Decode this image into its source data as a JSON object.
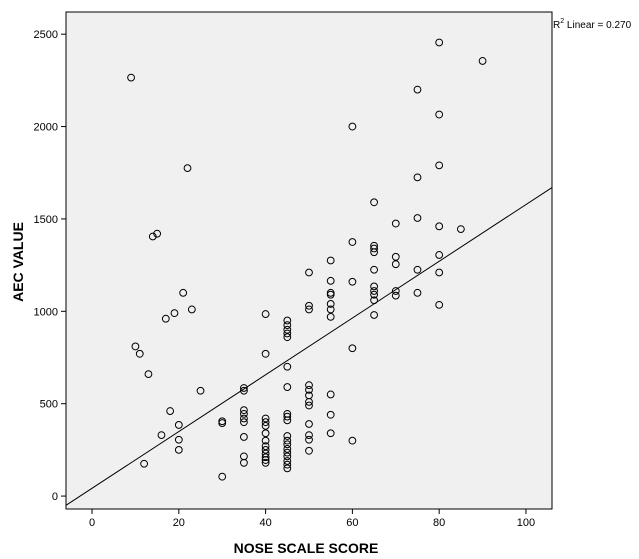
{
  "chart_data": {
    "type": "scatter",
    "xlabel": "NOSE SCALE SCORE",
    "ylabel": "AEC VALUE",
    "xlim": [
      -6,
      106
    ],
    "ylim": [
      -70,
      2620
    ],
    "x_ticks": [
      0,
      20,
      40,
      60,
      80,
      100
    ],
    "y_ticks": [
      0,
      500,
      1000,
      1500,
      2000,
      2500
    ],
    "x_tick_labels": [
      "0",
      "20",
      "40",
      "60",
      "80",
      "100"
    ],
    "y_tick_labels": [
      "0",
      "500",
      "1000",
      "1500",
      "2000",
      "2500"
    ],
    "grid": false,
    "background": "#f0f0f0",
    "marker_color": "#000000",
    "fit_line": {
      "label_prefix": "R",
      "label_sup": "2",
      "label_suffix": " Linear = 0.270",
      "start": [
        -6,
        -50
      ],
      "end": [
        106,
        1670
      ]
    },
    "points": [
      [
        9,
        2265
      ],
      [
        10,
        810
      ],
      [
        11,
        770
      ],
      [
        12,
        175
      ],
      [
        13,
        660
      ],
      [
        14,
        1405
      ],
      [
        15,
        1420
      ],
      [
        16,
        330
      ],
      [
        17,
        960
      ],
      [
        18,
        460
      ],
      [
        19,
        990
      ],
      [
        20,
        250
      ],
      [
        20,
        385
      ],
      [
        20,
        305
      ],
      [
        21,
        1100
      ],
      [
        22,
        1775
      ],
      [
        23,
        1010
      ],
      [
        25,
        570
      ],
      [
        30,
        105
      ],
      [
        30,
        395
      ],
      [
        30,
        405
      ],
      [
        35,
        180
      ],
      [
        35,
        215
      ],
      [
        35,
        320
      ],
      [
        35,
        400
      ],
      [
        35,
        420
      ],
      [
        35,
        445
      ],
      [
        35,
        465
      ],
      [
        35,
        570
      ],
      [
        35,
        585
      ],
      [
        40,
        180
      ],
      [
        40,
        195
      ],
      [
        40,
        210
      ],
      [
        40,
        230
      ],
      [
        40,
        250
      ],
      [
        40,
        270
      ],
      [
        40,
        300
      ],
      [
        40,
        340
      ],
      [
        40,
        380
      ],
      [
        40,
        400
      ],
      [
        40,
        420
      ],
      [
        40,
        770
      ],
      [
        40,
        985
      ],
      [
        45,
        150
      ],
      [
        45,
        170
      ],
      [
        45,
        190
      ],
      [
        45,
        215
      ],
      [
        45,
        235
      ],
      [
        45,
        255
      ],
      [
        45,
        280
      ],
      [
        45,
        300
      ],
      [
        45,
        325
      ],
      [
        45,
        410
      ],
      [
        45,
        430
      ],
      [
        45,
        445
      ],
      [
        45,
        590
      ],
      [
        45,
        700
      ],
      [
        45,
        860
      ],
      [
        45,
        880
      ],
      [
        45,
        900
      ],
      [
        45,
        925
      ],
      [
        45,
        950
      ],
      [
        50,
        245
      ],
      [
        50,
        305
      ],
      [
        50,
        330
      ],
      [
        50,
        390
      ],
      [
        50,
        490
      ],
      [
        50,
        510
      ],
      [
        50,
        545
      ],
      [
        50,
        575
      ],
      [
        50,
        600
      ],
      [
        50,
        1010
      ],
      [
        50,
        1030
      ],
      [
        50,
        1210
      ],
      [
        55,
        340
      ],
      [
        55,
        440
      ],
      [
        55,
        550
      ],
      [
        55,
        970
      ],
      [
        55,
        1010
      ],
      [
        55,
        1040
      ],
      [
        55,
        1090
      ],
      [
        55,
        1100
      ],
      [
        55,
        1165
      ],
      [
        55,
        1275
      ],
      [
        60,
        300
      ],
      [
        60,
        800
      ],
      [
        60,
        1160
      ],
      [
        60,
        1375
      ],
      [
        60,
        2000
      ],
      [
        65,
        980
      ],
      [
        65,
        1060
      ],
      [
        65,
        1090
      ],
      [
        65,
        1110
      ],
      [
        65,
        1135
      ],
      [
        65,
        1225
      ],
      [
        65,
        1320
      ],
      [
        65,
        1340
      ],
      [
        65,
        1355
      ],
      [
        65,
        1590
      ],
      [
        70,
        1085
      ],
      [
        70,
        1110
      ],
      [
        70,
        1255
      ],
      [
        70,
        1295
      ],
      [
        70,
        1475
      ],
      [
        75,
        1100
      ],
      [
        75,
        1225
      ],
      [
        75,
        1505
      ],
      [
        75,
        1725
      ],
      [
        75,
        2200
      ],
      [
        80,
        1035
      ],
      [
        80,
        1210
      ],
      [
        80,
        1305
      ],
      [
        80,
        1460
      ],
      [
        80,
        1790
      ],
      [
        80,
        2065
      ],
      [
        80,
        2455
      ],
      [
        85,
        1445
      ],
      [
        90,
        2355
      ]
    ]
  }
}
